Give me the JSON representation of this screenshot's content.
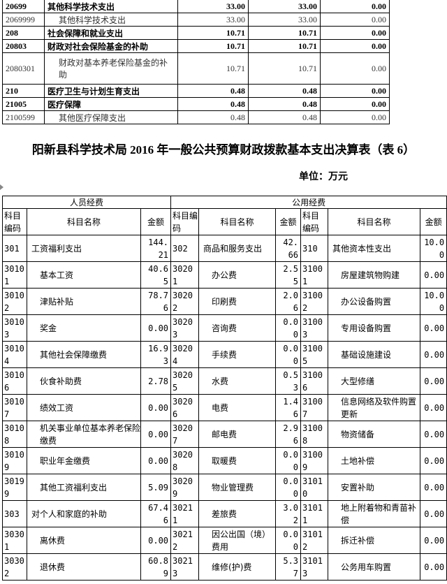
{
  "top_table": {
    "rows": [
      {
        "code": "20699",
        "name": "其他科学技术支出",
        "v1": "33.00",
        "v2": "33.00",
        "v3": "0.00",
        "bold": true
      },
      {
        "code": "2069999",
        "name": "其他科学技术支出",
        "v1": "33.00",
        "v2": "33.00",
        "v3": "0.00",
        "bold": false
      },
      {
        "code": "208",
        "name": "社会保障和就业支出",
        "v1": "10.71",
        "v2": "10.71",
        "v3": "0.00",
        "bold": true
      },
      {
        "code": "20803",
        "name": "财政对社会保险基金的补助",
        "v1": "10.71",
        "v2": "10.71",
        "v3": "0.00",
        "bold": true
      },
      {
        "code": "2080301",
        "name": "财政对基本养老保险基金的补助",
        "v1": "10.71",
        "v2": "10.71",
        "v3": "0.00",
        "bold": false
      },
      {
        "code": "210",
        "name": "医疗卫生与计划生育支出",
        "v1": "0.48",
        "v2": "0.48",
        "v3": "0.00",
        "bold": true
      },
      {
        "code": "21005",
        "name": "医疗保障",
        "v1": "0.48",
        "v2": "0.48",
        "v3": "0.00",
        "bold": true
      },
      {
        "code": "2100599",
        "name": "其他医疗保障支出",
        "v1": "0.48",
        "v2": "0.48",
        "v3": "0.00",
        "bold": false
      }
    ]
  },
  "title": "阳新县科学技术局 2016 年一般公共预算财政拨款基本支出决算表（表 6）",
  "unit": "单位：万元",
  "table": {
    "group_personnel": "人员经费",
    "group_public": "公用经费",
    "h_code": "科目编码",
    "h_name": "科目名称",
    "h_amount": "金额",
    "rows": [
      [
        "301",
        "工资福利支出",
        "144.21",
        "302",
        "商品和服务支出",
        "42.66",
        "310",
        "其他资本性支出",
        "10.00"
      ],
      [
        "30101",
        "基本工资",
        "40.65",
        "30201",
        "办公费",
        "2.55",
        "31001",
        "房屋建筑物购建",
        "0.00"
      ],
      [
        "30102",
        "津贴补贴",
        "78.76",
        "30202",
        "印刷费",
        "2.06",
        "31002",
        "办公设备购置",
        "10.00"
      ],
      [
        "30103",
        "奖金",
        "0.00",
        "30203",
        "咨询费",
        "0.00",
        "31003",
        "专用设备购置",
        "0.00"
      ],
      [
        "30104",
        "其他社会保障缴费",
        "16.93",
        "30204",
        "手续费",
        "0.00",
        "31005",
        "基础设施建设",
        "0.00"
      ],
      [
        "30106",
        "伙食补助费",
        "2.78",
        "30205",
        "水费",
        "0.53",
        "31006",
        "大型修缮",
        "0.00"
      ],
      [
        "30107",
        "绩效工资",
        "0.00",
        "30206",
        "电费",
        "1.46",
        "31007",
        "信息网络及软件购置更新",
        "0.00"
      ],
      [
        "30108",
        "机关事业单位基本养老保险缴费",
        "0.00",
        "30207",
        "邮电费",
        "2.96",
        "31008",
        "物资储备",
        "0.00"
      ],
      [
        "30109",
        "职业年金缴费",
        "0.00",
        "30208",
        "取暖费",
        "0.00",
        "31009",
        "土地补偿",
        "0.00"
      ],
      [
        "30199",
        "其他工资福利支出",
        "5.09",
        "30209",
        "物业管理费",
        "0.00",
        "31010",
        "安置补助",
        "0.00"
      ],
      [
        "303",
        "对个人和家庭的补助",
        "67.46",
        "30211",
        "差旅费",
        "3.02",
        "31011",
        "地上附着物和青苗补偿",
        "0.00"
      ],
      [
        "30301",
        "离休费",
        "0.00",
        "30212",
        "因公出国（境）费用",
        "0.00",
        "31012",
        "拆迁补偿",
        "0.00"
      ],
      [
        "30302",
        "退休费",
        "60.89",
        "30213",
        "维修(护)费",
        "5.37",
        "31013",
        "公务用车购置",
        "0.00"
      ]
    ]
  }
}
